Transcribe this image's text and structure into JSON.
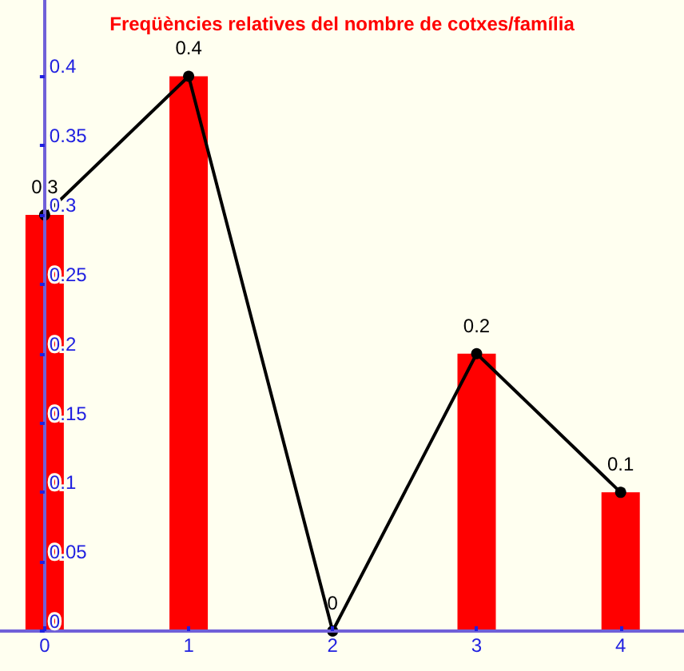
{
  "chart_data": {
    "type": "bar",
    "title": "Freqüències relatives del nombre de cotxes/família",
    "x": [
      0,
      1,
      2,
      3,
      4
    ],
    "xlim": [
      -0.31,
      4.44
    ],
    "xticks": [
      0,
      1,
      2,
      3,
      4
    ],
    "ylim": [
      0,
      0.455
    ],
    "yticks": [
      0,
      0.05,
      0.1,
      0.15,
      0.2,
      0.25,
      0.3,
      0.35,
      0.4
    ],
    "series": [
      {
        "color": "#ff0000",
        "values": [
          0.3,
          0.4,
          0,
          0.2,
          0.1
        ]
      },
      {
        "type": "line",
        "color": "#000000",
        "marker": "circle",
        "values": [
          0.3,
          0.4,
          0,
          0.2,
          0.1
        ],
        "value_labels": [
          "0.3",
          "0.4",
          "0",
          "0.2",
          "0.1"
        ]
      }
    ]
  }
}
